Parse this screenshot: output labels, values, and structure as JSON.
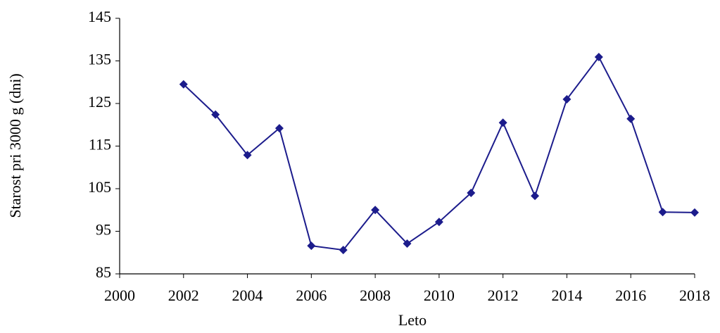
{
  "chart_data": {
    "type": "line",
    "x_label": "Leto",
    "y_label": "Starost pri 3000 g (dni)",
    "x": [
      2002,
      2003,
      2004,
      2005,
      2006,
      2007,
      2008,
      2009,
      2010,
      2011,
      2012,
      2013,
      2014,
      2015,
      2016,
      2017,
      2018
    ],
    "series": [
      {
        "color": "#1c1c8c",
        "values": [
          129.5,
          122.4,
          112.9,
          119.2,
          91.6,
          90.6,
          100,
          92.1,
          97.2,
          104,
          120.5,
          103.3,
          126,
          135.9,
          121.4,
          99.5,
          99.4
        ]
      }
    ],
    "xlim": [
      2000,
      2018
    ],
    "xticks": [
      2000,
      2002,
      2004,
      2006,
      2008,
      2010,
      2012,
      2014,
      2016,
      2018
    ],
    "ylim": [
      85,
      145
    ],
    "yticks": [
      85,
      95,
      105,
      115,
      125,
      135,
      145
    ],
    "grid": false
  }
}
